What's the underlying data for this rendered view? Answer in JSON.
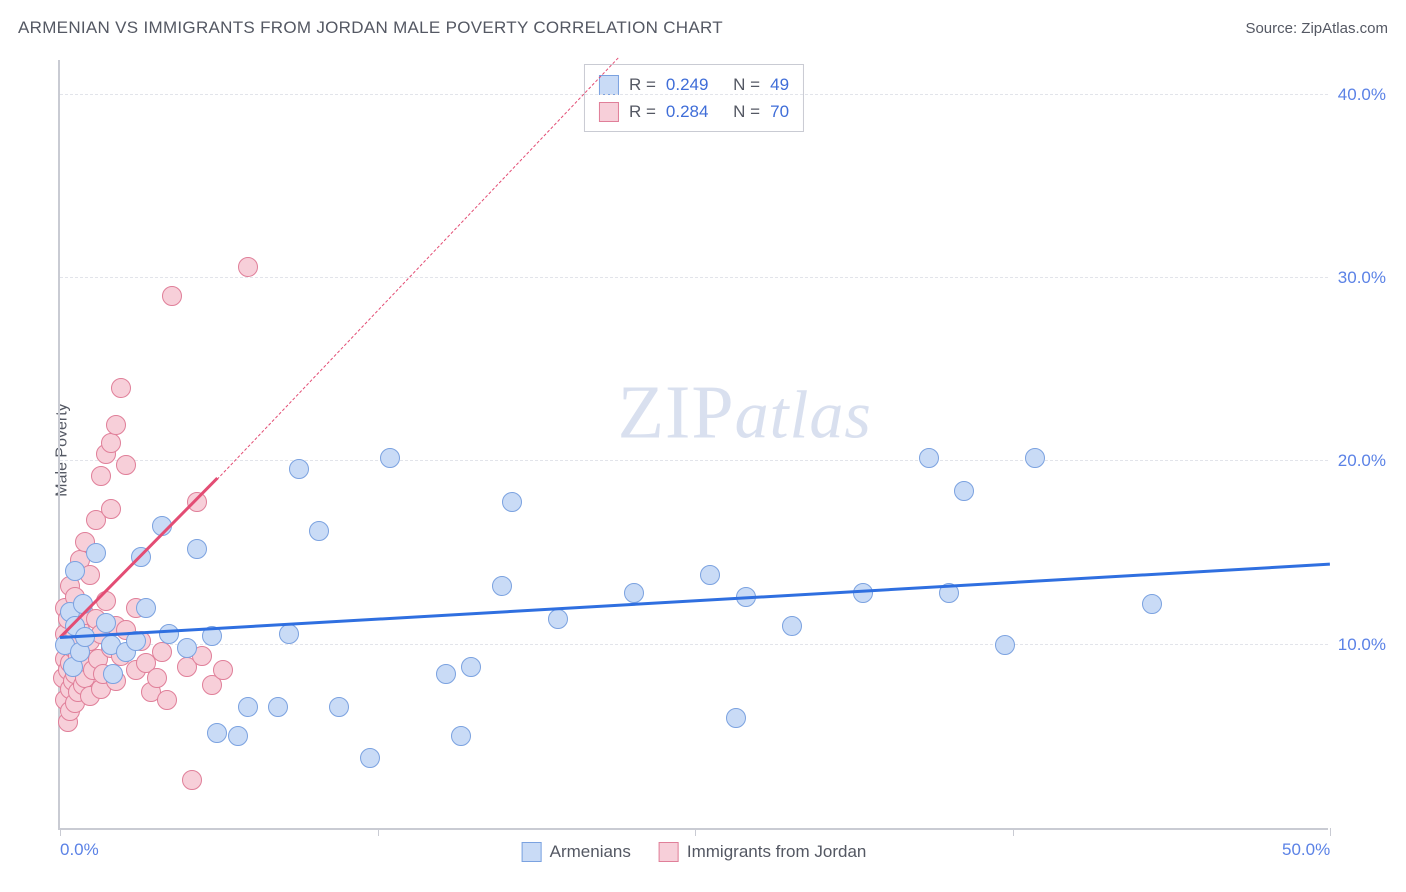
{
  "header": {
    "title": "ARMENIAN VS IMMIGRANTS FROM JORDAN MALE POVERTY CORRELATION CHART",
    "source": "Source: ZipAtlas.com"
  },
  "watermark": {
    "zip": "ZIP",
    "atlas": "atlas"
  },
  "chart": {
    "type": "scatter",
    "y_axis_title": "Male Poverty",
    "xlim": [
      0,
      50
    ],
    "ylim": [
      0,
      42
    ],
    "x_ticks": [
      0,
      25,
      50
    ],
    "x_tick_labels": [
      "0.0%",
      "",
      "50.0%"
    ],
    "x_minor_ticks": [
      12.5,
      37.5
    ],
    "y_ticks": [
      10,
      20,
      30,
      40
    ],
    "y_tick_labels": [
      "10.0%",
      "20.0%",
      "30.0%",
      "40.0%"
    ],
    "grid_color": "#e2e4ea",
    "axis_color": "#c9cbd3",
    "background_color": "#ffffff",
    "tick_label_color": "#5b82e6",
    "tick_label_fontsize": 17,
    "axis_title_color": "#545863",
    "axis_title_fontsize": 16,
    "marker_radius": 10,
    "marker_border_width": 1.5,
    "series": [
      {
        "name": "Armenians",
        "fill": "#c9dbf6",
        "stroke": "#7ba2e0",
        "trend_color": "#2f6fe0",
        "trend_width": 3,
        "trend_dash": "solid",
        "trend_start": [
          0,
          10.3
        ],
        "trend_end": [
          50,
          14.3
        ],
        "legend_stats": {
          "R": "0.249",
          "N": "49"
        },
        "points": [
          [
            0.2,
            10.0
          ],
          [
            0.4,
            11.8
          ],
          [
            0.5,
            8.8
          ],
          [
            0.6,
            11.0
          ],
          [
            0.6,
            14.0
          ],
          [
            0.8,
            9.6
          ],
          [
            0.9,
            12.2
          ],
          [
            1.0,
            10.4
          ],
          [
            1.4,
            15.0
          ],
          [
            1.8,
            11.2
          ],
          [
            2.0,
            10.0
          ],
          [
            2.1,
            8.4
          ],
          [
            2.6,
            9.6
          ],
          [
            3.0,
            10.2
          ],
          [
            3.2,
            14.8
          ],
          [
            3.4,
            12.0
          ],
          [
            4.0,
            16.5
          ],
          [
            4.3,
            10.6
          ],
          [
            5.0,
            9.8
          ],
          [
            5.4,
            15.2
          ],
          [
            6.0,
            10.5
          ],
          [
            6.2,
            5.2
          ],
          [
            7.0,
            5.0
          ],
          [
            7.4,
            6.6
          ],
          [
            8.6,
            6.6
          ],
          [
            9.0,
            10.6
          ],
          [
            9.4,
            19.6
          ],
          [
            10.2,
            16.2
          ],
          [
            11.0,
            6.6
          ],
          [
            12.2,
            3.8
          ],
          [
            13.0,
            20.2
          ],
          [
            15.2,
            8.4
          ],
          [
            15.8,
            5.0
          ],
          [
            16.2,
            8.8
          ],
          [
            17.4,
            13.2
          ],
          [
            17.8,
            17.8
          ],
          [
            19.6,
            11.4
          ],
          [
            22.6,
            12.8
          ],
          [
            25.6,
            13.8
          ],
          [
            26.6,
            6.0
          ],
          [
            27.0,
            12.6
          ],
          [
            28.8,
            11.0
          ],
          [
            31.6,
            12.8
          ],
          [
            34.2,
            20.2
          ],
          [
            35.0,
            12.8
          ],
          [
            35.6,
            18.4
          ],
          [
            37.2,
            10.0
          ],
          [
            38.4,
            20.2
          ],
          [
            43.0,
            12.2
          ]
        ]
      },
      {
        "name": "Immigrants from Jordan",
        "fill": "#f7cfd9",
        "stroke": "#e07f99",
        "trend_color": "#e34d74",
        "trend_width": 3,
        "trend_dash_solid_end": [
          6.2,
          19.0
        ],
        "trend_dash": "dashed",
        "trend_start": [
          0,
          10.3
        ],
        "trend_end": [
          22.0,
          42.0
        ],
        "legend_stats": {
          "R": "0.284",
          "N": "70"
        },
        "points": [
          [
            0.1,
            8.2
          ],
          [
            0.2,
            7.0
          ],
          [
            0.2,
            9.2
          ],
          [
            0.2,
            10.6
          ],
          [
            0.2,
            12.0
          ],
          [
            0.3,
            5.8
          ],
          [
            0.3,
            8.6
          ],
          [
            0.3,
            11.4
          ],
          [
            0.4,
            6.4
          ],
          [
            0.4,
            7.6
          ],
          [
            0.4,
            9.0
          ],
          [
            0.4,
            10.0
          ],
          [
            0.4,
            13.2
          ],
          [
            0.5,
            8.0
          ],
          [
            0.5,
            9.8
          ],
          [
            0.5,
            11.8
          ],
          [
            0.6,
            6.8
          ],
          [
            0.6,
            8.4
          ],
          [
            0.6,
            10.4
          ],
          [
            0.6,
            12.6
          ],
          [
            0.7,
            7.4
          ],
          [
            0.7,
            9.4
          ],
          [
            0.8,
            8.8
          ],
          [
            0.8,
            10.8
          ],
          [
            0.8,
            14.6
          ],
          [
            0.9,
            7.8
          ],
          [
            0.9,
            9.6
          ],
          [
            1.0,
            8.2
          ],
          [
            1.0,
            11.6
          ],
          [
            1.0,
            15.6
          ],
          [
            1.1,
            9.0
          ],
          [
            1.2,
            7.2
          ],
          [
            1.2,
            10.2
          ],
          [
            1.2,
            13.8
          ],
          [
            1.3,
            8.6
          ],
          [
            1.4,
            11.4
          ],
          [
            1.4,
            16.8
          ],
          [
            1.5,
            9.2
          ],
          [
            1.6,
            7.6
          ],
          [
            1.6,
            10.6
          ],
          [
            1.6,
            19.2
          ],
          [
            1.7,
            8.4
          ],
          [
            1.8,
            12.4
          ],
          [
            1.8,
            20.4
          ],
          [
            2.0,
            9.8
          ],
          [
            2.0,
            17.4
          ],
          [
            2.0,
            21.0
          ],
          [
            2.2,
            8.0
          ],
          [
            2.2,
            11.0
          ],
          [
            2.2,
            22.0
          ],
          [
            2.4,
            9.4
          ],
          [
            2.4,
            24.0
          ],
          [
            2.6,
            10.8
          ],
          [
            2.6,
            19.8
          ],
          [
            3.0,
            8.6
          ],
          [
            3.0,
            12.0
          ],
          [
            3.2,
            10.2
          ],
          [
            3.4,
            9.0
          ],
          [
            3.6,
            7.4
          ],
          [
            3.8,
            8.2
          ],
          [
            4.0,
            9.6
          ],
          [
            4.2,
            7.0
          ],
          [
            4.4,
            29.0
          ],
          [
            5.0,
            8.8
          ],
          [
            5.2,
            2.6
          ],
          [
            5.4,
            17.8
          ],
          [
            5.6,
            9.4
          ],
          [
            6.0,
            7.8
          ],
          [
            6.4,
            8.6
          ],
          [
            7.4,
            30.6
          ]
        ]
      }
    ]
  },
  "legend_top": {
    "r_label": "R =",
    "n_label": "N ="
  },
  "legend_bottom": {
    "items": [
      "Armenians",
      "Immigrants from Jordan"
    ]
  }
}
